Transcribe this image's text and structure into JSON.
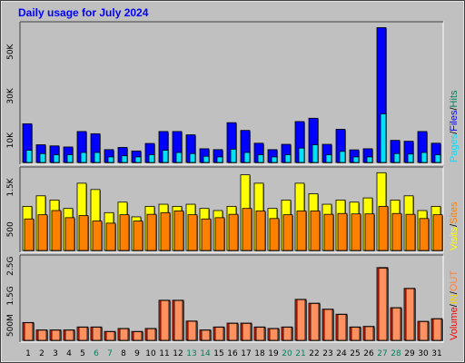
{
  "title": "Daily usage for July 2024",
  "colors": {
    "background": "#c0c0c0",
    "title": "#0000ff",
    "hits": "#00805c",
    "files": "#0000ff",
    "pages": "#00e0ff",
    "sites": "#ff8000",
    "visits": "#ffff00",
    "kbytes": "#ff0000",
    "in": "#ffd000",
    "out": "#ff8040",
    "volume_bar": "#ff4000",
    "weekend_label": "#00805c",
    "weekday_label": "#000000"
  },
  "chart_data": [
    {
      "type": "bar",
      "panel": "hits-files-pages",
      "categories": [
        "1",
        "2",
        "3",
        "4",
        "5",
        "6",
        "7",
        "8",
        "9",
        "10",
        "11",
        "12",
        "13",
        "14",
        "15",
        "16",
        "17",
        "18",
        "19",
        "20",
        "21",
        "22",
        "23",
        "24",
        "25",
        "26",
        "27",
        "28",
        "29",
        "30",
        "31"
      ],
      "weekend_days": [
        "6",
        "7",
        "13",
        "14",
        "20",
        "21",
        "27",
        "28"
      ],
      "y_ticks": [
        "10K",
        "30K",
        "50K"
      ],
      "y_tick_values": [
        10000,
        30000,
        50000
      ],
      "ylim": [
        0,
        62000
      ],
      "legend": [
        "Pages",
        "/",
        "Files",
        "/",
        "Hits"
      ],
      "series": [
        {
          "name": "Hits",
          "values": [
            18000,
            8500,
            8000,
            7500,
            14500,
            13500,
            6000,
            7000,
            5500,
            9000,
            14500,
            14500,
            13000,
            6500,
            6000,
            18500,
            15000,
            9000,
            6000,
            8500,
            19000,
            20500,
            8500,
            15500,
            6000,
            6500,
            62000,
            10500,
            10000,
            14500,
            9000
          ]
        },
        {
          "name": "Files",
          "values": [
            17500,
            8000,
            7500,
            7000,
            14000,
            13000,
            5800,
            6800,
            5200,
            8600,
            14000,
            14000,
            12500,
            6200,
            5800,
            18000,
            14500,
            8700,
            5800,
            8200,
            18500,
            20000,
            8200,
            15000,
            5700,
            6200,
            61000,
            10000,
            9600,
            14000,
            8700
          ]
        },
        {
          "name": "Pages",
          "values": [
            5500,
            4000,
            3500,
            3500,
            4500,
            4500,
            2500,
            3000,
            2500,
            3500,
            5500,
            4500,
            4000,
            2800,
            2500,
            6000,
            4500,
            3500,
            2500,
            3500,
            6500,
            8000,
            3500,
            5000,
            2500,
            2500,
            22000,
            4000,
            3800,
            4500,
            3500
          ]
        }
      ]
    },
    {
      "type": "bar",
      "panel": "visits-sites",
      "categories": [
        "1",
        "2",
        "3",
        "4",
        "5",
        "6",
        "7",
        "8",
        "9",
        "10",
        "11",
        "12",
        "13",
        "14",
        "15",
        "16",
        "17",
        "18",
        "19",
        "20",
        "21",
        "22",
        "23",
        "24",
        "25",
        "26",
        "27",
        "28",
        "29",
        "30",
        "31"
      ],
      "y_ticks": [
        "500",
        "1.5K"
      ],
      "y_tick_values": [
        500,
        1500
      ],
      "ylim": [
        0,
        1900
      ],
      "legend": [
        "Visits",
        "/",
        "Sites"
      ],
      "series": [
        {
          "name": "Visits",
          "values": [
            1050,
            1300,
            1200,
            1000,
            1600,
            1450,
            900,
            1150,
            800,
            1050,
            1100,
            1050,
            1100,
            1000,
            950,
            1050,
            1800,
            1600,
            1000,
            1200,
            1600,
            1350,
            1100,
            1200,
            1150,
            1250,
            1850,
            1200,
            1300,
            950,
            1050
          ]
        },
        {
          "name": "Sites",
          "values": [
            750,
            850,
            950,
            780,
            830,
            700,
            650,
            850,
            700,
            860,
            900,
            940,
            850,
            750,
            780,
            860,
            1000,
            940,
            760,
            850,
            940,
            940,
            860,
            880,
            870,
            870,
            1050,
            880,
            860,
            760,
            850
          ]
        }
      ]
    },
    {
      "type": "bar",
      "panel": "volume",
      "categories": [
        "1",
        "2",
        "3",
        "4",
        "5",
        "6",
        "7",
        "8",
        "9",
        "10",
        "11",
        "12",
        "13",
        "14",
        "15",
        "16",
        "17",
        "18",
        "19",
        "20",
        "21",
        "22",
        "23",
        "24",
        "25",
        "26",
        "27",
        "28",
        "29",
        "30",
        "31"
      ],
      "y_ticks": [
        "500M",
        "1.5G",
        "2.5G"
      ],
      "y_tick_values": [
        500,
        1500,
        2500
      ],
      "ylim": [
        0,
        2750
      ],
      "legend": [
        "Volume",
        "/",
        "IN",
        "/",
        "OUT"
      ],
      "series": [
        {
          "name": "Volume",
          "values": [
            600,
            350,
            350,
            350,
            450,
            450,
            300,
            400,
            300,
            400,
            1350,
            1350,
            650,
            350,
            450,
            580,
            580,
            450,
            400,
            450,
            1380,
            1250,
            1050,
            880,
            450,
            470,
            2450,
            1100,
            1750,
            640,
            730
          ]
        },
        {
          "name": "OUT",
          "values": [
            590,
            340,
            340,
            340,
            440,
            440,
            290,
            390,
            290,
            390,
            1340,
            1340,
            640,
            340,
            440,
            570,
            570,
            440,
            390,
            440,
            1370,
            1240,
            1040,
            870,
            440,
            460,
            2430,
            1090,
            1740,
            630,
            720
          ]
        }
      ]
    }
  ]
}
